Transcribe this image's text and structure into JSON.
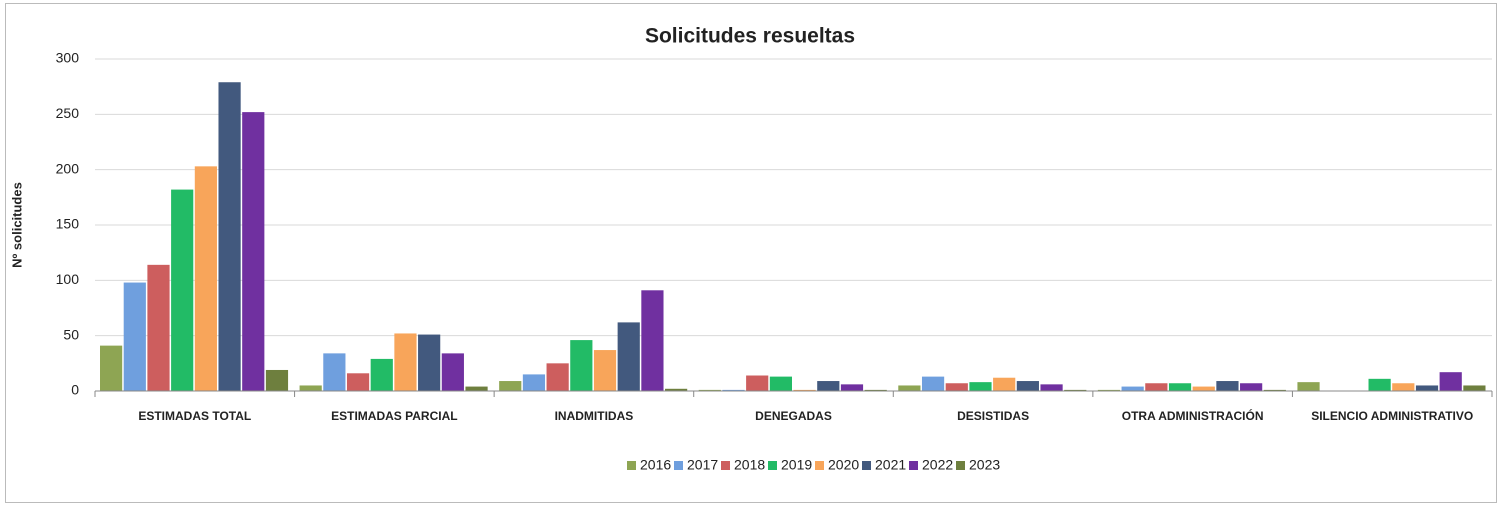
{
  "chart_data": {
    "type": "bar",
    "title": "Solicitudes resueltas",
    "y_label": "Nº solicitudes",
    "categories": [
      "ESTIMADAS TOTAL",
      "ESTIMADAS PARCIAL",
      "INADMITIDAS",
      "DENEGADAS",
      "DESISTIDAS",
      "OTRA ADMINISTRACIÓN",
      "SILENCIO ADMINISTRATIVO"
    ],
    "series": [
      {
        "name": "2016",
        "color": "#8ea553",
        "values": [
          41,
          5,
          9,
          1,
          5,
          1,
          8
        ]
      },
      {
        "name": "2017",
        "color": "#6f9fde",
        "values": [
          98,
          34,
          15,
          1,
          13,
          4,
          0
        ]
      },
      {
        "name": "2018",
        "color": "#cd5e5e",
        "values": [
          114,
          16,
          25,
          14,
          7,
          7,
          0
        ]
      },
      {
        "name": "2019",
        "color": "#22bb66",
        "values": [
          182,
          29,
          46,
          13,
          8,
          7,
          11
        ]
      },
      {
        "name": "2020",
        "color": "#f8a55a",
        "values": [
          203,
          52,
          37,
          1,
          12,
          4,
          7
        ]
      },
      {
        "name": "2021",
        "color": "#42597e",
        "values": [
          279,
          51,
          62,
          9,
          9,
          9,
          5
        ]
      },
      {
        "name": "2022",
        "color": "#7030a0",
        "values": [
          252,
          34,
          91,
          6,
          6,
          7,
          17
        ]
      },
      {
        "name": "2023",
        "color": "#6e7f3e",
        "values": [
          19,
          4,
          2,
          1,
          1,
          1,
          5
        ]
      }
    ],
    "ylim": [
      0,
      300
    ],
    "yticks": [
      0,
      50,
      100,
      150,
      200,
      250,
      300
    ],
    "grid": true,
    "legend": "bottom"
  }
}
